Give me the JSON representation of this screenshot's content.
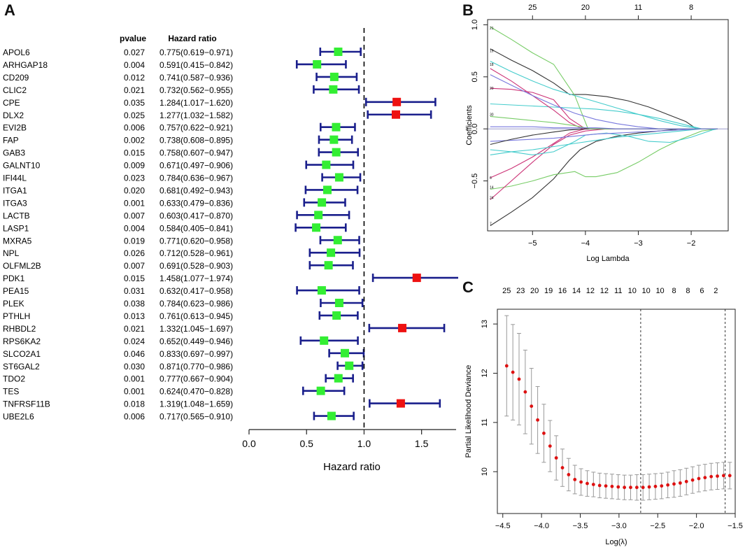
{
  "colors": {
    "ci_line": "#1a1f8c",
    "protective": "#33ee33",
    "risk": "#ee1111",
    "dot": "#dd1111",
    "errbar": "#999999",
    "axis": "#222222"
  },
  "chart_data": [
    {
      "panel": "A",
      "type": "forest",
      "columns": {
        "pvalue": "pvalue",
        "hr": "Hazard ratio"
      },
      "xlabel": "Hazard ratio",
      "xlim": [
        0.0,
        1.8
      ],
      "xticks": [
        "0.0",
        "0.5",
        "1.0",
        "1.5"
      ],
      "xtick_values": [
        0.0,
        0.5,
        1.0,
        1.5
      ],
      "reference": 1.0,
      "rows": [
        {
          "gene": "APOL6",
          "pvalue": "0.027",
          "hr_text": "0.775(0.619−0.971)",
          "hr": 0.775,
          "lo": 0.619,
          "hi": 0.971
        },
        {
          "gene": "ARHGAP18",
          "pvalue": "0.004",
          "hr_text": "0.591(0.415−0.842)",
          "hr": 0.591,
          "lo": 0.415,
          "hi": 0.842
        },
        {
          "gene": "CD209",
          "pvalue": "0.012",
          "hr_text": "0.741(0.587−0.936)",
          "hr": 0.741,
          "lo": 0.587,
          "hi": 0.936
        },
        {
          "gene": "CLIC2",
          "pvalue": "0.021",
          "hr_text": "0.732(0.562−0.955)",
          "hr": 0.732,
          "lo": 0.562,
          "hi": 0.955
        },
        {
          "gene": "CPE",
          "pvalue": "0.035",
          "hr_text": "1.284(1.017−1.620)",
          "hr": 1.284,
          "lo": 1.017,
          "hi": 1.62
        },
        {
          "gene": "DLX2",
          "pvalue": "0.025",
          "hr_text": "1.277(1.032−1.582)",
          "hr": 1.277,
          "lo": 1.032,
          "hi": 1.582
        },
        {
          "gene": "EVI2B",
          "pvalue": "0.006",
          "hr_text": "0.757(0.622−0.921)",
          "hr": 0.757,
          "lo": 0.622,
          "hi": 0.921
        },
        {
          "gene": "FAP",
          "pvalue": "0.002",
          "hr_text": "0.738(0.608−0.895)",
          "hr": 0.738,
          "lo": 0.608,
          "hi": 0.895
        },
        {
          "gene": "GAB3",
          "pvalue": "0.015",
          "hr_text": "0.758(0.607−0.947)",
          "hr": 0.758,
          "lo": 0.607,
          "hi": 0.947
        },
        {
          "gene": "GALNT10",
          "pvalue": "0.009",
          "hr_text": "0.671(0.497−0.906)",
          "hr": 0.671,
          "lo": 0.497,
          "hi": 0.906
        },
        {
          "gene": "IFI44L",
          "pvalue": "0.023",
          "hr_text": "0.784(0.636−0.967)",
          "hr": 0.784,
          "lo": 0.636,
          "hi": 0.967
        },
        {
          "gene": "ITGA1",
          "pvalue": "0.020",
          "hr_text": "0.681(0.492−0.943)",
          "hr": 0.681,
          "lo": 0.492,
          "hi": 0.943
        },
        {
          "gene": "ITGA3",
          "pvalue": "0.001",
          "hr_text": "0.633(0.479−0.836)",
          "hr": 0.633,
          "lo": 0.479,
          "hi": 0.836
        },
        {
          "gene": "LACTB",
          "pvalue": "0.007",
          "hr_text": "0.603(0.417−0.870)",
          "hr": 0.603,
          "lo": 0.417,
          "hi": 0.87
        },
        {
          "gene": "LASP1",
          "pvalue": "0.004",
          "hr_text": "0.584(0.405−0.841)",
          "hr": 0.584,
          "lo": 0.405,
          "hi": 0.841
        },
        {
          "gene": "MXRA5",
          "pvalue": "0.019",
          "hr_text": "0.771(0.620−0.958)",
          "hr": 0.771,
          "lo": 0.62,
          "hi": 0.958
        },
        {
          "gene": "NPL",
          "pvalue": "0.026",
          "hr_text": "0.712(0.528−0.961)",
          "hr": 0.712,
          "lo": 0.528,
          "hi": 0.961
        },
        {
          "gene": "OLFML2B",
          "pvalue": "0.007",
          "hr_text": "0.691(0.528−0.903)",
          "hr": 0.691,
          "lo": 0.528,
          "hi": 0.903
        },
        {
          "gene": "PDK1",
          "pvalue": "0.015",
          "hr_text": "1.458(1.077−1.974)",
          "hr": 1.458,
          "lo": 1.077,
          "hi": 1.974
        },
        {
          "gene": "PEA15",
          "pvalue": "0.031",
          "hr_text": "0.632(0.417−0.958)",
          "hr": 0.632,
          "lo": 0.417,
          "hi": 0.958
        },
        {
          "gene": "PLEK",
          "pvalue": "0.038",
          "hr_text": "0.784(0.623−0.986)",
          "hr": 0.784,
          "lo": 0.623,
          "hi": 0.986
        },
        {
          "gene": "PTHLH",
          "pvalue": "0.013",
          "hr_text": "0.761(0.613−0.945)",
          "hr": 0.761,
          "lo": 0.613,
          "hi": 0.945
        },
        {
          "gene": "RHBDL2",
          "pvalue": "0.021",
          "hr_text": "1.332(1.045−1.697)",
          "hr": 1.332,
          "lo": 1.045,
          "hi": 1.697
        },
        {
          "gene": "RPS6KA2",
          "pvalue": "0.024",
          "hr_text": "0.652(0.449−0.946)",
          "hr": 0.652,
          "lo": 0.449,
          "hi": 0.946
        },
        {
          "gene": "SLCO2A1",
          "pvalue": "0.046",
          "hr_text": "0.833(0.697−0.997)",
          "hr": 0.833,
          "lo": 0.697,
          "hi": 0.997
        },
        {
          "gene": "ST6GAL2",
          "pvalue": "0.030",
          "hr_text": "0.871(0.770−0.986)",
          "hr": 0.871,
          "lo": 0.77,
          "hi": 0.986
        },
        {
          "gene": "TDO2",
          "pvalue": "0.001",
          "hr_text": "0.777(0.667−0.904)",
          "hr": 0.777,
          "lo": 0.667,
          "hi": 0.904
        },
        {
          "gene": "TES",
          "pvalue": "0.001",
          "hr_text": "0.624(0.470−0.828)",
          "hr": 0.624,
          "lo": 0.47,
          "hi": 0.828
        },
        {
          "gene": "TNFRSF11B",
          "pvalue": "0.018",
          "hr_text": "1.319(1.048−1.659)",
          "hr": 1.319,
          "lo": 1.048,
          "hi": 1.659
        },
        {
          "gene": "UBE2L6",
          "pvalue": "0.006",
          "hr_text": "0.717(0.565−0.910)",
          "hr": 0.717,
          "lo": 0.565,
          "hi": 0.91
        }
      ]
    },
    {
      "panel": "B",
      "type": "line",
      "xlabel": "Log Lambda",
      "ylabel": "Coefficients",
      "xlim": [
        -5.85,
        -1.3
      ],
      "ylim": [
        -0.98,
        1.05
      ],
      "xticks": [
        -5,
        -4,
        -3,
        -2
      ],
      "xtick_labels": [
        "−5",
        "−4",
        "−3",
        "−2"
      ],
      "yticks": [
        -0.5,
        0.0,
        0.5,
        1.0
      ],
      "ytick_labels": [
        "−0.5",
        "0.0",
        "0.5",
        "1.0"
      ],
      "top_axis_values": [
        -5,
        -4,
        -3,
        -2
      ],
      "top_axis_labels": [
        "25",
        "20",
        "11",
        "8"
      ],
      "left_margin_labels": [
        {
          "label": "21",
          "y": 0.97
        },
        {
          "label": "19",
          "y": 0.75
        },
        {
          "label": "18",
          "y": 0.62
        },
        {
          "label": "20",
          "y": 0.39
        },
        {
          "label": "30",
          "y": 0.14
        },
        {
          "label": "6",
          "y": -0.47
        },
        {
          "label": "14",
          "y": -0.56
        },
        {
          "label": "24",
          "y": -0.66
        },
        {
          "label": "7",
          "y": -0.91
        }
      ],
      "series": [
        {
          "name": "s1",
          "color": "#333333",
          "x": [
            -5.8,
            -5.4,
            -5.0,
            -4.6,
            -4.3,
            -4.0,
            -3.6,
            -3.2,
            -2.8,
            -2.4,
            -2.1,
            -1.9,
            -1.5
          ],
          "y": [
            0.77,
            0.66,
            0.56,
            0.44,
            0.33,
            0.33,
            0.31,
            0.27,
            0.21,
            0.13,
            0.07,
            0.0,
            0.0
          ]
        },
        {
          "name": "s2",
          "color": "#77cc66",
          "x": [
            -5.8,
            -5.4,
            -5.0,
            -4.6,
            -4.2,
            -3.95,
            -3.6,
            -3.2,
            -2.8,
            -2.4,
            -2.0,
            -1.6,
            -1.5
          ],
          "y": [
            0.98,
            0.86,
            0.73,
            0.62,
            0.32,
            0.0,
            0.0,
            0.0,
            0.0,
            0.0,
            0.0,
            0.0,
            0.0
          ]
        },
        {
          "name": "s3",
          "color": "#44cccc",
          "x": [
            -5.8,
            -5.4,
            -5.0,
            -4.6,
            -4.2,
            -3.8,
            -3.4,
            -3.0,
            -2.6,
            -2.2,
            -1.8,
            -1.5
          ],
          "y": [
            0.65,
            0.55,
            0.46,
            0.38,
            0.32,
            0.26,
            0.2,
            0.14,
            0.08,
            0.03,
            0.0,
            0.0
          ]
        },
        {
          "name": "s4",
          "color": "#44cccc",
          "x": [
            -5.8,
            -5.4,
            -5.0,
            -4.6,
            -4.2,
            -3.8,
            -3.4,
            -3.0,
            -2.6,
            -2.2,
            -1.8,
            -1.5
          ],
          "y": [
            0.24,
            0.23,
            0.22,
            0.21,
            0.2,
            0.19,
            0.17,
            0.14,
            0.1,
            0.05,
            0.0,
            0.0
          ]
        },
        {
          "name": "s5",
          "color": "#cc3377",
          "x": [
            -5.8,
            -5.4,
            -5.0,
            -4.6,
            -4.3,
            -4.0,
            -3.6,
            -3.2,
            -2.8,
            -2.4,
            -2.0,
            -1.5
          ],
          "y": [
            0.39,
            0.38,
            0.35,
            0.28,
            0.1,
            0.0,
            0.0,
            0.0,
            0.0,
            0.0,
            0.0,
            0.0
          ]
        },
        {
          "name": "s6",
          "color": "#cc3377",
          "x": [
            -5.8,
            -5.4,
            -5.0,
            -4.6,
            -4.3,
            -4.05,
            -3.6,
            -3.0,
            -2.0,
            -1.5
          ],
          "y": [
            0.58,
            0.46,
            0.32,
            0.18,
            0.06,
            0.0,
            0.0,
            0.0,
            0.0,
            0.0
          ]
        },
        {
          "name": "s7",
          "color": "#7777dd",
          "x": [
            -5.8,
            -5.4,
            -5.0,
            -4.6,
            -4.2,
            -3.8,
            -3.4,
            -3.0,
            -2.6,
            -2.2,
            -1.8,
            -1.5
          ],
          "y": [
            0.52,
            0.42,
            0.32,
            0.23,
            0.15,
            0.09,
            0.05,
            0.02,
            0.0,
            0.0,
            0.0,
            0.0
          ]
        },
        {
          "name": "s8",
          "color": "#333333",
          "x": [
            -5.8,
            -5.4,
            -5.0,
            -4.6,
            -4.3,
            -4.1,
            -3.8,
            -3.4,
            -3.0,
            -2.6,
            -2.2,
            -1.8,
            -1.5
          ],
          "y": [
            -0.93,
            -0.8,
            -0.66,
            -0.48,
            -0.3,
            -0.2,
            -0.12,
            -0.07,
            -0.04,
            -0.02,
            0.0,
            0.0,
            0.0
          ]
        },
        {
          "name": "s9",
          "color": "#77cc66",
          "x": [
            -5.8,
            -5.4,
            -5.0,
            -4.6,
            -4.2,
            -4.0,
            -3.8,
            -3.4,
            -3.0,
            -2.6,
            -2.2,
            -1.8,
            -1.5
          ],
          "y": [
            -0.58,
            -0.55,
            -0.5,
            -0.44,
            -0.41,
            -0.46,
            -0.46,
            -0.42,
            -0.32,
            -0.2,
            -0.1,
            -0.02,
            0.0
          ]
        },
        {
          "name": "s10",
          "color": "#cc3377",
          "x": [
            -5.8,
            -5.4,
            -5.0,
            -4.6,
            -4.3,
            -4.0,
            -3.6,
            -3.0,
            -2.0,
            -1.5
          ],
          "y": [
            -0.68,
            -0.5,
            -0.32,
            -0.15,
            -0.06,
            -0.02,
            0.0,
            0.0,
            0.0,
            0.0
          ]
        },
        {
          "name": "s11",
          "color": "#cc3377",
          "x": [
            -5.8,
            -5.4,
            -5.0,
            -4.6,
            -4.3,
            -4.0,
            -3.6,
            -3.0,
            -2.0,
            -1.5
          ],
          "y": [
            -0.47,
            -0.38,
            -0.27,
            -0.14,
            -0.04,
            0.0,
            0.0,
            0.0,
            0.0,
            0.0
          ]
        },
        {
          "name": "s12",
          "color": "#44cccc",
          "x": [
            -5.8,
            -5.4,
            -5.0,
            -4.6,
            -4.2,
            -3.8,
            -3.4,
            -3.0,
            -2.6,
            -2.2,
            -1.8,
            -1.5
          ],
          "y": [
            -0.25,
            -0.22,
            -0.2,
            -0.17,
            -0.14,
            -0.11,
            -0.08,
            -0.06,
            -0.04,
            -0.02,
            0.0,
            0.0
          ]
        },
        {
          "name": "s13",
          "color": "#44cccc",
          "x": [
            -5.8,
            -5.4,
            -5.0,
            -4.6,
            -4.2,
            -4.0,
            -3.6,
            -3.2,
            -2.8,
            -2.4,
            -2.0,
            -1.6,
            -1.5
          ],
          "y": [
            -0.2,
            -0.22,
            -0.25,
            -0.22,
            -0.12,
            -0.06,
            -0.04,
            -0.07,
            -0.12,
            -0.13,
            -0.08,
            -0.01,
            0.0
          ]
        },
        {
          "name": "s14",
          "color": "#7777dd",
          "x": [
            -5.8,
            -5.4,
            -5.0,
            -4.6,
            -4.2,
            -3.8,
            -3.4,
            -3.0,
            -2.6,
            -2.2,
            -1.8,
            -1.5
          ],
          "y": [
            -0.12,
            -0.11,
            -0.1,
            -0.09,
            -0.07,
            -0.05,
            -0.04,
            -0.03,
            -0.02,
            -0.01,
            0.0,
            0.0
          ]
        },
        {
          "name": "s15",
          "color": "#333333",
          "x": [
            -5.8,
            -5.4,
            -5.0,
            -4.6,
            -4.3,
            -4.0,
            -3.6,
            -3.0,
            -2.0,
            -1.5
          ],
          "y": [
            -0.15,
            -0.1,
            -0.06,
            -0.03,
            -0.01,
            0.0,
            0.0,
            0.0,
            0.0,
            0.0
          ]
        },
        {
          "name": "s16",
          "color": "#77cc66",
          "x": [
            -5.8,
            -5.4,
            -5.0,
            -4.6,
            -4.2,
            -3.9,
            -3.6,
            -3.0,
            -2.0,
            -1.5
          ],
          "y": [
            0.12,
            0.1,
            0.08,
            0.06,
            0.03,
            0.0,
            0.0,
            0.0,
            0.0,
            0.0
          ]
        },
        {
          "name": "s17",
          "color": "#7777dd",
          "x": [
            -5.8,
            -5.4,
            -5.0,
            -4.6,
            -4.2,
            -3.8,
            -3.4,
            -3.0,
            -2.6,
            -2.2,
            -1.8,
            -1.5
          ],
          "y": [
            0.02,
            0.02,
            0.02,
            0.01,
            0.01,
            0.01,
            0.0,
            0.0,
            0.0,
            0.0,
            0.0,
            0.0
          ]
        }
      ]
    },
    {
      "panel": "C",
      "type": "scatter_errorbar",
      "xlabel": "Log(λ)",
      "ylabel": "Partial Likelihood Deviance",
      "xlim": [
        -4.57,
        -1.5
      ],
      "ylim": [
        9.15,
        13.3
      ],
      "xticks": [
        -4.5,
        -4.0,
        -3.5,
        -3.0,
        -2.5,
        -2.0,
        -1.5
      ],
      "xtick_labels": [
        "−4.5",
        "−4.0",
        "−3.5",
        "−3.0",
        "−2.5",
        "−2.0",
        "−1.5"
      ],
      "yticks": [
        10,
        11,
        12,
        13
      ],
      "ytick_labels": [
        "10",
        "11",
        "12",
        "13"
      ],
      "top_axis_values": [
        -4.45,
        -4.27,
        -4.09,
        -3.91,
        -3.73,
        -3.55,
        -3.37,
        -3.19,
        -3.01,
        -2.83,
        -2.65,
        -2.47,
        -2.29,
        -2.11,
        -1.93,
        -1.75
      ],
      "top_axis_labels": [
        "25",
        "23",
        "20",
        "19",
        "16",
        "14",
        "12",
        "12",
        "11",
        "10",
        "10",
        "10",
        "8",
        "8",
        "6",
        "2"
      ],
      "vlines": [
        -2.72,
        -1.63
      ],
      "x": [
        -4.45,
        -4.37,
        -4.29,
        -4.21,
        -4.13,
        -4.05,
        -3.97,
        -3.89,
        -3.81,
        -3.73,
        -3.65,
        -3.57,
        -3.49,
        -3.41,
        -3.33,
        -3.25,
        -3.17,
        -3.09,
        -3.01,
        -2.93,
        -2.85,
        -2.77,
        -2.69,
        -2.61,
        -2.53,
        -2.45,
        -2.37,
        -2.29,
        -2.21,
        -2.13,
        -2.05,
        -1.97,
        -1.89,
        -1.81,
        -1.73,
        -1.65,
        -1.57
      ],
      "y": [
        12.15,
        12.02,
        11.88,
        11.62,
        11.33,
        11.05,
        10.78,
        10.52,
        10.28,
        10.08,
        9.94,
        9.84,
        9.79,
        9.76,
        9.74,
        9.72,
        9.71,
        9.7,
        9.69,
        9.68,
        9.68,
        9.68,
        9.68,
        9.69,
        9.7,
        9.71,
        9.73,
        9.75,
        9.77,
        9.8,
        9.83,
        9.86,
        9.88,
        9.9,
        9.91,
        9.92,
        9.92
      ],
      "err": [
        1.02,
        0.97,
        0.93,
        0.85,
        0.77,
        0.68,
        0.59,
        0.52,
        0.45,
        0.38,
        0.33,
        0.29,
        0.27,
        0.26,
        0.25,
        0.25,
        0.25,
        0.25,
        0.25,
        0.25,
        0.25,
        0.26,
        0.26,
        0.26,
        0.26,
        0.26,
        0.26,
        0.27,
        0.27,
        0.27,
        0.27,
        0.27,
        0.27,
        0.27,
        0.27,
        0.27,
        0.27
      ]
    }
  ]
}
